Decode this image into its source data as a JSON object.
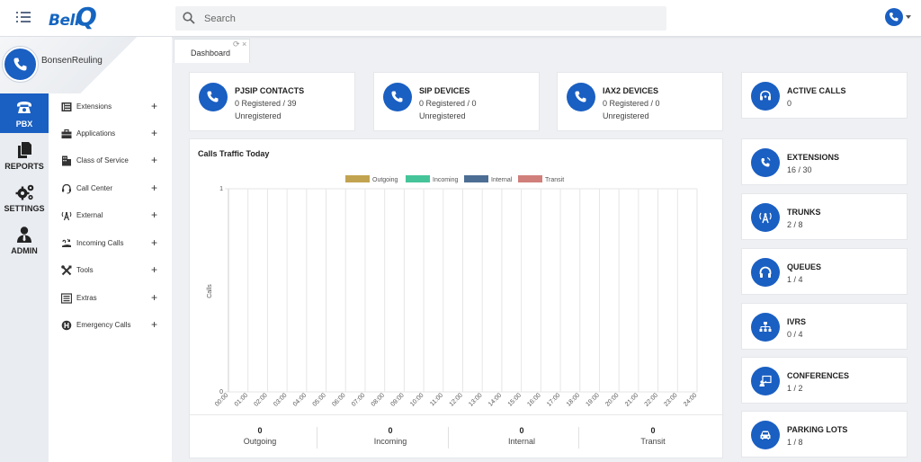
{
  "header": {
    "logo_text": "Bell",
    "logo_q": "Q",
    "search_placeholder": "Search"
  },
  "sidebar": {
    "username": "BonsenReuling",
    "rail": [
      {
        "label": "PBX",
        "icon": "phone-icon",
        "active": true
      },
      {
        "label": "REPORTS",
        "icon": "documents-icon",
        "active": false
      },
      {
        "label": "SETTINGS",
        "icon": "gears-icon",
        "active": false
      },
      {
        "label": "ADMIN",
        "icon": "admin-user-icon",
        "active": false
      }
    ],
    "menu": [
      {
        "label": "Extensions",
        "icon": "table-icon"
      },
      {
        "label": "Applications",
        "icon": "briefcase-icon"
      },
      {
        "label": "Class of Service",
        "icon": "building-icon"
      },
      {
        "label": "Call Center",
        "icon": "headset-icon"
      },
      {
        "label": "External",
        "icon": "antenna-icon"
      },
      {
        "label": "Incoming Calls",
        "icon": "incoming-call-icon"
      },
      {
        "label": "Tools",
        "icon": "tools-icon"
      },
      {
        "label": "Extras",
        "icon": "list-icon"
      },
      {
        "label": "Emergency Calls",
        "icon": "emergency-icon"
      }
    ],
    "plus": "+"
  },
  "tabs": [
    {
      "label": "Dashboard",
      "close": "×",
      "refresh": "⟳"
    }
  ],
  "top_cards": [
    {
      "title": "PJSIP CONTACTS",
      "line1": "0 Registered / 39",
      "line2": "Unregistered",
      "icon": "phone-icon"
    },
    {
      "title": "SIP DEVICES",
      "line1": "0 Registered / 0",
      "line2": "Unregistered",
      "icon": "phone-icon"
    },
    {
      "title": "IAX2 DEVICES",
      "line1": "0 Registered / 0",
      "line2": "Unregistered",
      "icon": "phone-icon"
    }
  ],
  "right_cards": [
    {
      "title": "ACTIVE CALLS",
      "value": "0",
      "icon": "headset-icon"
    },
    {
      "title": "EXTENSIONS",
      "value": "16 / 30",
      "icon": "mobile-call-icon"
    },
    {
      "title": "TRUNKS",
      "value": "2 / 8",
      "icon": "antenna-icon"
    },
    {
      "title": "QUEUES",
      "value": "1 / 4",
      "icon": "headphones-icon"
    },
    {
      "title": "IVRS",
      "value": "0 / 4",
      "icon": "sitemap-icon"
    },
    {
      "title": "CONFERENCES",
      "value": "1 / 2",
      "icon": "presentation-icon"
    },
    {
      "title": "PARKING LOTS",
      "value": "1 / 8",
      "icon": "car-icon"
    }
  ],
  "chart_data": {
    "type": "line",
    "title": "Calls Traffic Today",
    "ylabel": "Calls",
    "xlabel": "",
    "ylim": [
      0,
      1
    ],
    "yticks": [
      "0",
      "1"
    ],
    "categories": [
      "00:00",
      "01:00",
      "02:00",
      "03:00",
      "04:00",
      "05:00",
      "06:00",
      "07:00",
      "08:00",
      "09:00",
      "10:00",
      "11:00",
      "12:00",
      "13:00",
      "14:00",
      "15:00",
      "16:00",
      "17:00",
      "18:00",
      "19:00",
      "20:00",
      "21:00",
      "22:00",
      "23:00",
      "24:00"
    ],
    "legend_position": "top",
    "grid": true,
    "series": [
      {
        "name": "Outgoing",
        "color": "#c2a350",
        "values": [
          0,
          0,
          0,
          0,
          0,
          0,
          0,
          0,
          0,
          0,
          0,
          0,
          0,
          0,
          0,
          0,
          0,
          0,
          0,
          0,
          0,
          0,
          0,
          0,
          0
        ]
      },
      {
        "name": "Incoming",
        "color": "#45c49a",
        "values": [
          0,
          0,
          0,
          0,
          0,
          0,
          0,
          0,
          0,
          0,
          0,
          0,
          0,
          0,
          0,
          0,
          0,
          0,
          0,
          0,
          0,
          0,
          0,
          0,
          0
        ]
      },
      {
        "name": "Internal",
        "color": "#4d6e94",
        "values": [
          0,
          0,
          0,
          0,
          0,
          0,
          0,
          0,
          0,
          0,
          0,
          0,
          0,
          0,
          0,
          0,
          0,
          0,
          0,
          0,
          0,
          0,
          0,
          0,
          0
        ]
      },
      {
        "name": "Transit",
        "color": "#d07f7a",
        "values": [
          0,
          0,
          0,
          0,
          0,
          0,
          0,
          0,
          0,
          0,
          0,
          0,
          0,
          0,
          0,
          0,
          0,
          0,
          0,
          0,
          0,
          0,
          0,
          0,
          0
        ]
      }
    ]
  },
  "totals": [
    {
      "value": "0",
      "label": "Outgoing"
    },
    {
      "value": "0",
      "label": "Incoming"
    },
    {
      "value": "0",
      "label": "Internal"
    },
    {
      "value": "0",
      "label": "Transit"
    }
  ],
  "colors": {
    "accent": "#1a5fc2"
  }
}
